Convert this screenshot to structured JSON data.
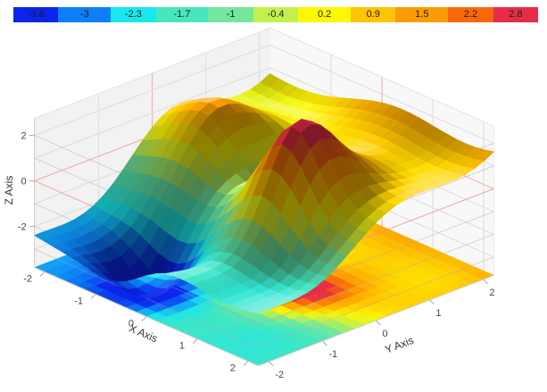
{
  "chart_data": {
    "type": "3d-surface",
    "title": "",
    "background": "#ffffff",
    "colorbar": {
      "position": "top",
      "orientation": "horizontal",
      "segments": [
        {
          "label": "-3.6",
          "value": -3.6,
          "span": 0.6,
          "color": "#0b24eb"
        },
        {
          "label": "-3",
          "value": -3.0,
          "span": 0.7,
          "color": "#0c7ef8"
        },
        {
          "label": "-2.3",
          "value": -2.3,
          "span": 0.6,
          "color": "#18e7ee"
        },
        {
          "label": "-1.7",
          "value": -1.7,
          "span": 0.7,
          "color": "#47e6bd"
        },
        {
          "label": "-1",
          "value": -1.0,
          "span": 0.6,
          "color": "#73e89c"
        },
        {
          "label": "-0.4",
          "value": -0.4,
          "span": 0.6,
          "color": "#c3f04b"
        },
        {
          "label": "0.2",
          "value": 0.2,
          "span": 0.7,
          "color": "#fdf702"
        },
        {
          "label": "0.9",
          "value": 0.9,
          "span": 0.6,
          "color": "#fec301"
        },
        {
          "label": "1.5",
          "value": 1.5,
          "span": 0.7,
          "color": "#fe9b01"
        },
        {
          "label": "2.2",
          "value": 2.2,
          "span": 0.6,
          "color": "#f8680a"
        },
        {
          "label": "2.8",
          "value": 2.8,
          "span": 0.6,
          "color": "#e62c48"
        }
      ]
    },
    "x": {
      "label": "X Axis",
      "ticks": [
        -2,
        -1,
        0,
        1,
        2
      ],
      "range": [
        -2.2,
        2.2
      ]
    },
    "y": {
      "label": "Y Axis",
      "ticks": [
        -2,
        -1,
        0,
        1,
        2
      ],
      "range": [
        -2.2,
        2.2
      ]
    },
    "z": {
      "label": "Z Axis",
      "ticks": [
        -2,
        0,
        2
      ],
      "range": [
        -3.8,
        2.75
      ]
    },
    "grid": {
      "wall_color_left": "#f2f2f2",
      "wall_color_right": "#f8f8f8",
      "line_color": "#dcdcdc",
      "zero_line_color": "#f2a9a4",
      "overlay_line_color": "rgba(170,170,170,0.45)",
      "overlay_zero_color": "rgba(238,148,142,0.8)",
      "edge_color": "#c9c9c9",
      "z_gridline_values": [
        -3,
        -2,
        -1,
        0,
        1,
        2
      ]
    },
    "colormap": {
      "stop_values": [
        -3.3,
        -2.65,
        -2.0,
        -1.35,
        -0.7,
        -0.1,
        0.55,
        1.2,
        1.85,
        2.5,
        3.1
      ],
      "stop_colors": [
        "#0b24eb",
        "#0c7ef8",
        "#18e7ee",
        "#47e6bd",
        "#73e89c",
        "#c3f04b",
        "#fdf702",
        "#fec301",
        "#fe9b01",
        "#f8680a",
        "#e62c48"
      ]
    },
    "surface": {
      "formula": "z = -0.2 + 0.25x + 0.85y + 3.6exp(-((x-0.75)^2+(y+0.1)^2)/0.55) - 2.2exp(-((x+0.55)^2+(y+1.55)^2)/0.5) + 2.1exp(-((x+1.35)^2+(y-0.3)^2)/0.9) - 2exp(-((x+0.15)^2+(y-0.4)^2)/0.6) + 0.45sin(2.1y+0.8) + 0.32sin(1.9x+1.2)",
      "base": {
        "c": -0.2,
        "kx": 0.25,
        "ky": 0.85
      },
      "gaussians": [
        {
          "a": 3.6,
          "x": 0.75,
          "y": -0.1,
          "s": 0.55
        },
        {
          "a": -2.2,
          "x": -0.55,
          "y": -1.55,
          "s": 0.5
        },
        {
          "a": 2.1,
          "x": -1.35,
          "y": 0.3,
          "s": 0.9
        },
        {
          "a": -2.0,
          "x": -0.15,
          "y": 0.4,
          "s": 0.6
        }
      ],
      "waves": [
        {
          "a": 0.45,
          "axis": "y",
          "k": 2.1,
          "p": 0.8
        },
        {
          "a": 0.32,
          "axis": "x",
          "k": 1.9,
          "p": 1.2
        }
      ],
      "resolution": 24,
      "floor_resolution": 22,
      "z_min": -3.8,
      "z_max": 3.3,
      "floor_projection": true,
      "extrema": [
        {
          "type": "maximum",
          "x": 0.75,
          "y": -0.1,
          "z": 3.2
        },
        {
          "type": "minimum",
          "x": -0.55,
          "y": -1.55,
          "z": -3.7
        },
        {
          "type": "secondary-peak",
          "x": -1.35,
          "y": 0.3,
          "z": 1.9
        },
        {
          "type": "valley",
          "x": -0.15,
          "y": 0.4,
          "z": -1.6
        }
      ]
    }
  }
}
